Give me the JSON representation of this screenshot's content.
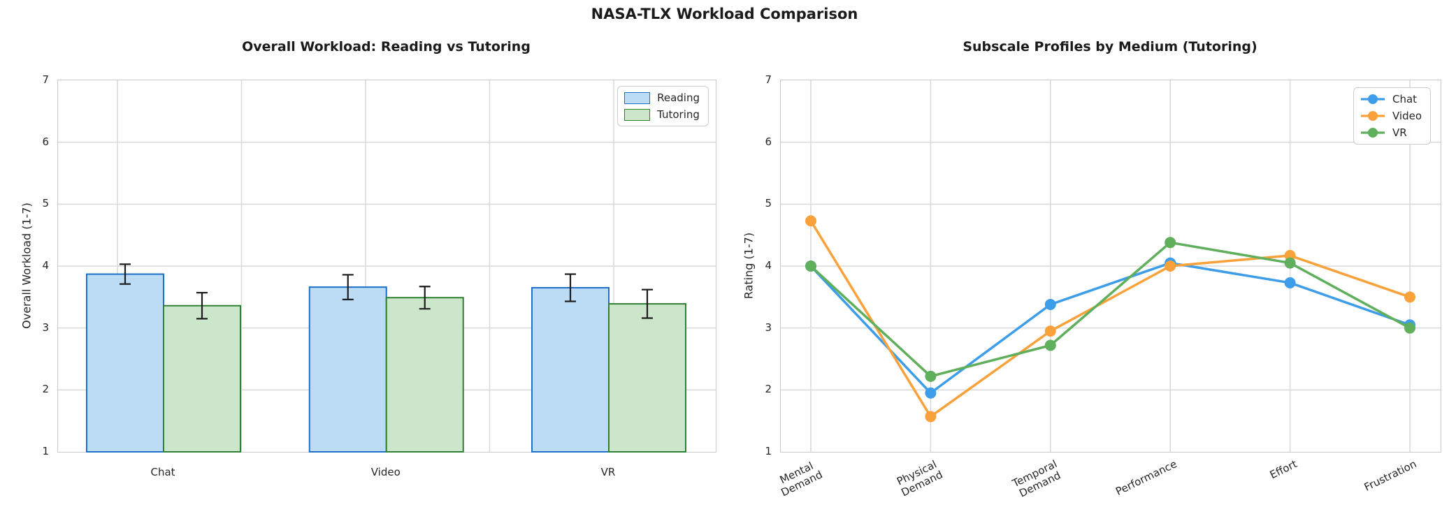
{
  "figure": {
    "title": "NASA-TLX Workload Comparison"
  },
  "chart_data": [
    {
      "type": "bar",
      "title": "Overall Workload: Reading vs Tutoring",
      "xlabel": "",
      "ylabel": "Overall Workload (1-7)",
      "ylim": [
        1,
        7
      ],
      "yticks": [
        1,
        2,
        3,
        4,
        5,
        6,
        7
      ],
      "grid": true,
      "legend_position": "upper right",
      "categories": [
        "Chat",
        "Video",
        "VR"
      ],
      "series": [
        {
          "name": "Reading",
          "values": [
            3.87,
            3.66,
            3.65
          ],
          "errors": [
            0.16,
            0.2,
            0.22
          ],
          "fill_color": "#BCDCF5",
          "edge_color": "#1F6FC8"
        },
        {
          "name": "Tutoring",
          "values": [
            3.36,
            3.49,
            3.39
          ],
          "errors": [
            0.21,
            0.18,
            0.23
          ],
          "fill_color": "#CBE6CA",
          "edge_color": "#2E8033"
        }
      ],
      "error_bar_color": "#1c1c1c"
    },
    {
      "type": "line",
      "title": "Subscale Profiles by Medium (Tutoring)",
      "xlabel": "",
      "ylabel": "Rating (1-7)",
      "ylim": [
        1,
        7
      ],
      "yticks": [
        1,
        2,
        3,
        4,
        5,
        6,
        7
      ],
      "grid": true,
      "legend_position": "upper right",
      "categories": [
        "Mental Demand",
        "Physical Demand",
        "Temporal Demand",
        "Performance",
        "Effort",
        "Frustration"
      ],
      "category_label_lines": [
        [
          "Mental",
          "Demand"
        ],
        [
          "Physical",
          "Demand"
        ],
        [
          "Temporal",
          "Demand"
        ],
        [
          "Performance"
        ],
        [
          "Effort"
        ],
        [
          "Frustration"
        ]
      ],
      "series": [
        {
          "name": "Chat",
          "color": "#3D9DE8",
          "values": [
            4.0,
            1.95,
            3.38,
            4.05,
            3.73,
            3.05
          ]
        },
        {
          "name": "Video",
          "color": "#F9A23B",
          "values": [
            4.73,
            1.57,
            2.95,
            4.0,
            4.17,
            3.5
          ]
        },
        {
          "name": "VR",
          "color": "#5FAF5C",
          "values": [
            4.0,
            2.22,
            2.72,
            4.38,
            4.05,
            3.0
          ]
        }
      ]
    }
  ],
  "style": {
    "grid_color": "#d9d9d9",
    "spine_color": "#c9c9c9",
    "text_color": "#262626"
  }
}
